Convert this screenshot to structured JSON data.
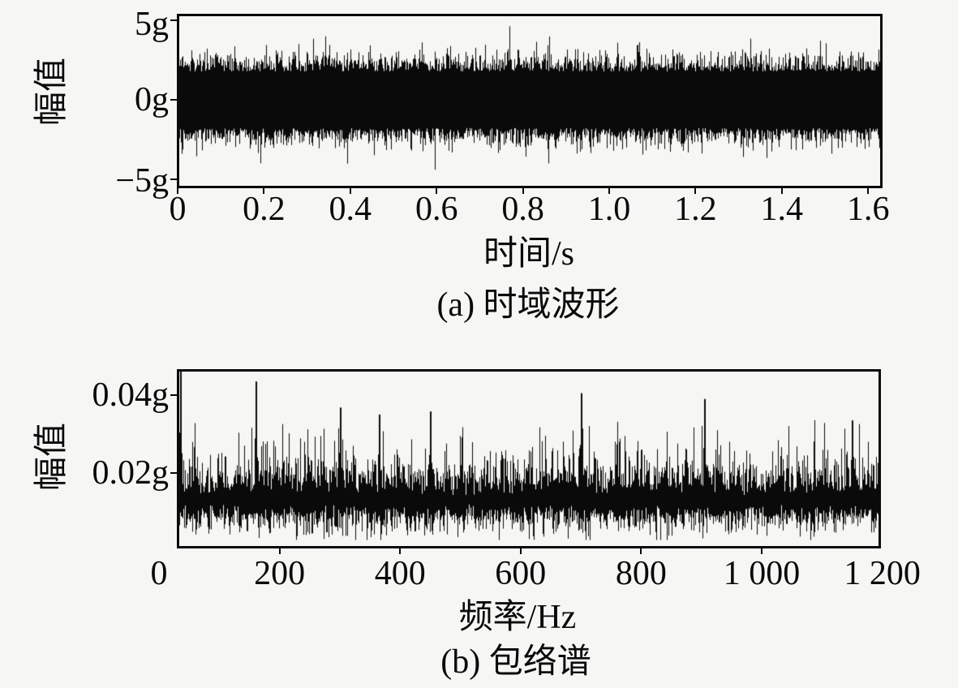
{
  "figure": {
    "background": "#f6f6f4",
    "ink": "#0a0a0a",
    "description": "Vibration signal figure with two stacked sub-plots of dense black random noise"
  },
  "chart_data": [
    {
      "type": "line",
      "name": "time-domain-waveform",
      "caption": "(a) 时域波形",
      "xlabel": "时间/s",
      "ylabel": "幅值",
      "unit": "g",
      "xlim": [
        0,
        1.63
      ],
      "ylim": [
        -5.5,
        5.5
      ],
      "xticks": [
        "0",
        "0.2",
        "0.4",
        "0.6",
        "0.8",
        "1.0",
        "1.2",
        "1.4",
        "1.6"
      ],
      "xtick_values": [
        0,
        0.2,
        0.4,
        0.6,
        0.8,
        1.0,
        1.2,
        1.4,
        1.6
      ],
      "yticks": [
        "5g",
        "0g",
        "−5g"
      ],
      "ytick_values": [
        5,
        0,
        -5
      ],
      "grid": false,
      "legend": null,
      "series": [
        {
          "name": "acceleration-noise",
          "color": "#0a0a0a",
          "kind": "broadband-random-noise",
          "dense_band_g": [
            -1.78,
            1.78
          ],
          "typical_peak_g": 3.2,
          "max_peak_g": 4.7,
          "spike_probability": 0.035,
          "seed": 20240501
        }
      ]
    },
    {
      "type": "line",
      "name": "envelope-spectrum",
      "caption": "(b) 包络谱",
      "xlabel": "频率/Hz",
      "ylabel": "幅值",
      "unit": "g",
      "xlim": [
        0,
        1200
      ],
      "ylim": [
        0.001,
        0.0467
      ],
      "xticks": [
        "0",
        "200",
        "400",
        "600",
        "800",
        "1 000",
        "1 200"
      ],
      "xtick_values": [
        0,
        200,
        400,
        600,
        800,
        1000,
        1200
      ],
      "yticks": [
        "0.04g",
        "0.02g"
      ],
      "ytick_values": [
        0.04,
        0.02
      ],
      "grid": false,
      "legend": null,
      "series": [
        {
          "name": "envelope-amplitude-noise",
          "color": "#0a0a0a",
          "kind": "broadband-random-noise",
          "baseline_g": 0.0135,
          "dense_band_g": [
            0.01,
            0.017
          ],
          "typical_peak_g": 0.03,
          "max_peak_g": 0.046,
          "spike_probability": 0.15,
          "seed": 771234,
          "notable_peaks": [
            {
              "hz": 28,
              "g": 0.0462
            },
            {
              "hz": 160,
              "g": 0.0435
            },
            {
              "hz": 300,
              "g": 0.0368
            },
            {
              "hz": 365,
              "g": 0.035
            },
            {
              "hz": 450,
              "g": 0.0358
            },
            {
              "hz": 700,
              "g": 0.0405
            },
            {
              "hz": 905,
              "g": 0.039
            },
            {
              "hz": 1150,
              "g": 0.0335
            }
          ]
        }
      ]
    }
  ]
}
